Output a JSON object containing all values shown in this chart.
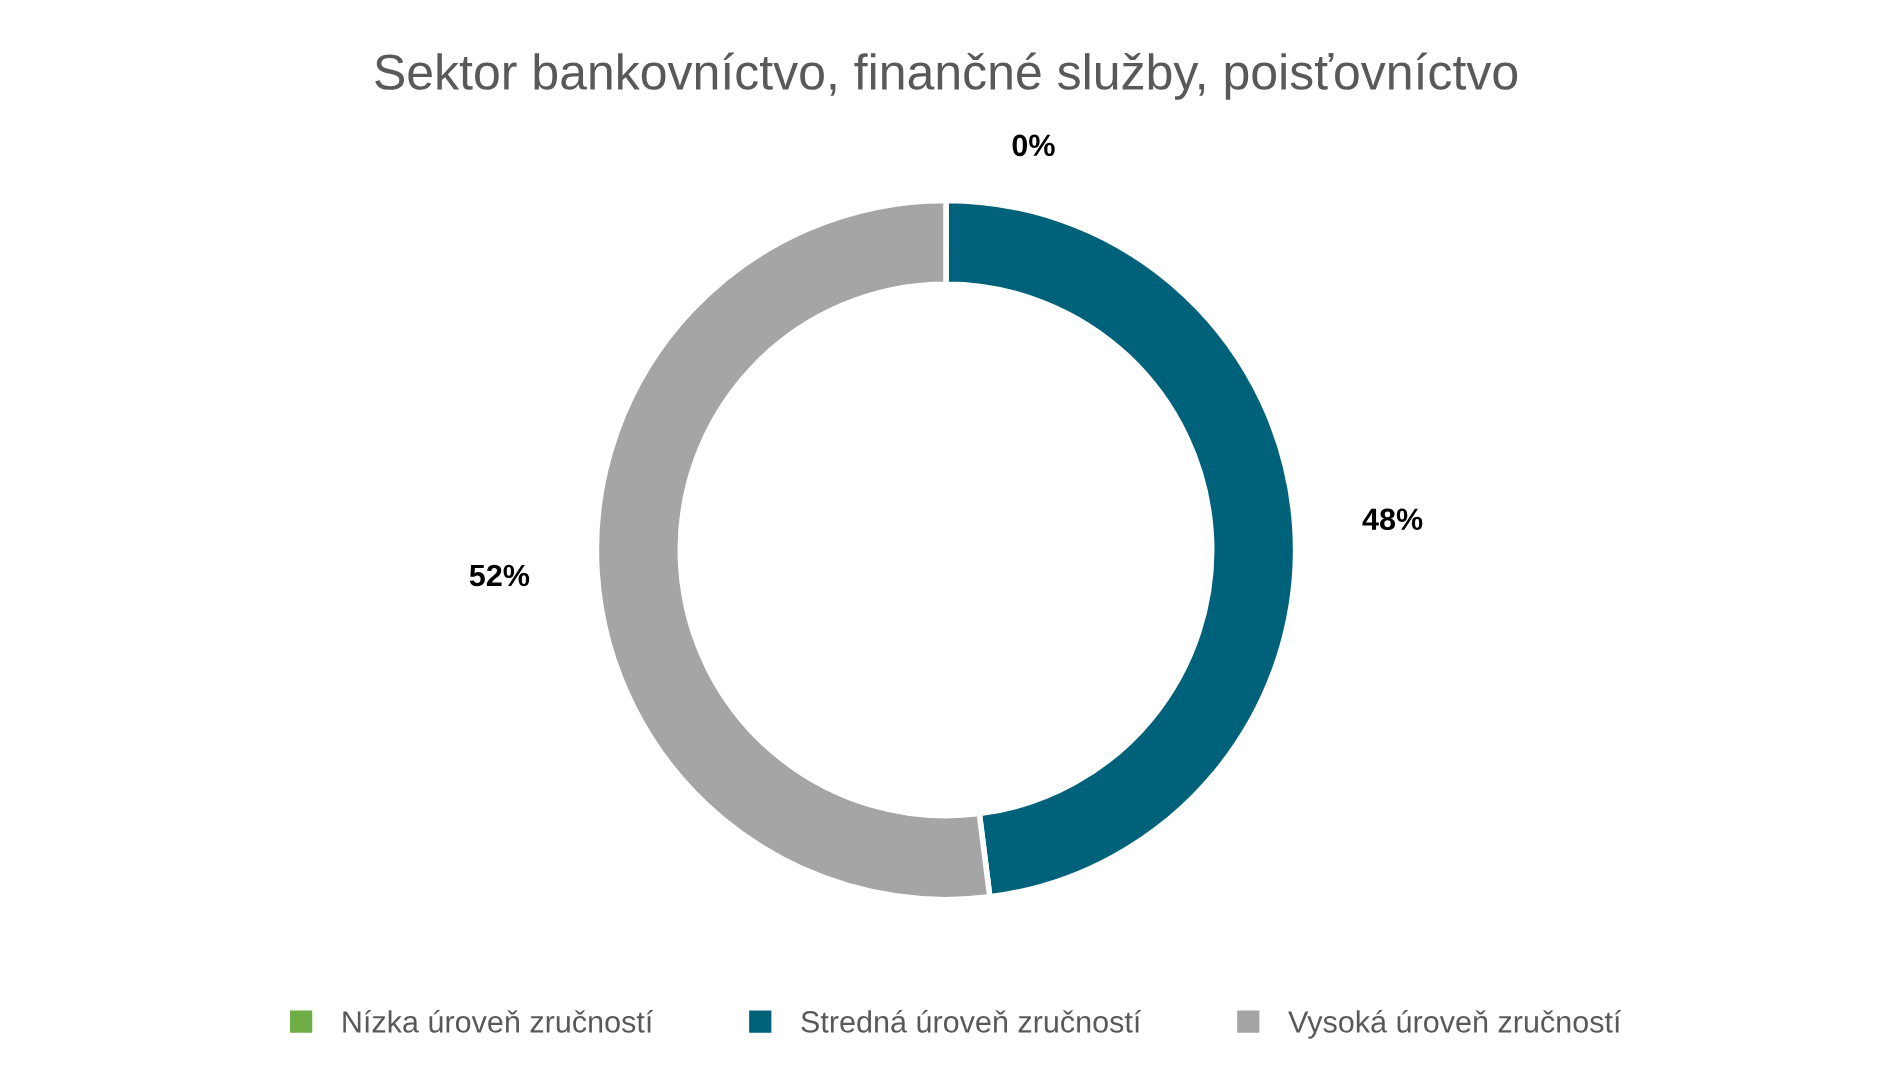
{
  "chart_data": {
    "type": "donut",
    "title": "Sektor bankovníctvo, finančné služby, poisťovníctvo",
    "categories": [
      "Nízka úroveň zručností",
      "Stredná úroveň zručností",
      "Vysoká úroveň zručností"
    ],
    "values": [
      0,
      48,
      52
    ],
    "colors": [
      "#70ad47",
      "#00627a",
      "#a5a5a5"
    ],
    "value_labels": [
      "0%",
      "48%",
      "52%"
    ],
    "legend": "bottom"
  }
}
